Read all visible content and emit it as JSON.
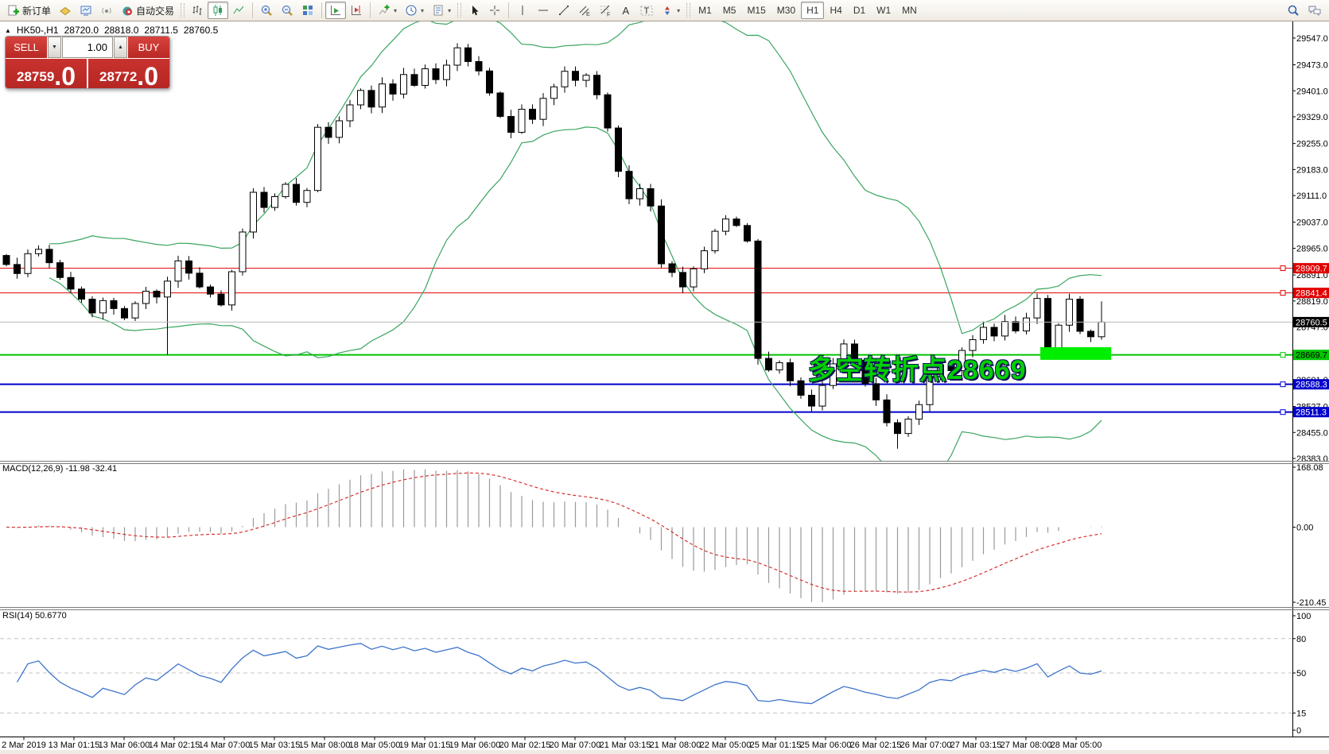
{
  "toolbar": {
    "new_order_label": "新订单",
    "autotrade_label": "自动交易",
    "timeframes": [
      "M1",
      "M5",
      "M15",
      "M30",
      "H1",
      "H4",
      "D1",
      "W1",
      "MN"
    ],
    "active_timeframe": "H1"
  },
  "chart_header": {
    "symbol_period": "HK50-,H1",
    "open": "28720.0",
    "high": "28818.0",
    "low": "28711.5",
    "close": "28760.5"
  },
  "trade_panel": {
    "sell_label": "SELL",
    "buy_label": "BUY",
    "volume": "1.00",
    "sell_price_int": "28759",
    "sell_price_frac": ".0",
    "buy_price_int": "28772",
    "buy_price_frac": ".0"
  },
  "annotation": "多空转折点28669",
  "macd_label": "MACD(12,26,9) -11.98 -32.41",
  "rsi_label": "RSI(14) 50.6770",
  "chart_data": {
    "type": "candlestick",
    "symbol": "HK50-",
    "period": "H1",
    "current_price": {
      "value": 28760.5,
      "label": "28760.5"
    },
    "price_ticks": [
      "29547.0",
      "29473.0",
      "29401.0",
      "29329.0",
      "29255.0",
      "29183.0",
      "29111.0",
      "29037.0",
      "28965.0",
      "28891.0",
      "28819.0",
      "28747.0",
      "28675.0",
      "28601.0",
      "28527.0",
      "28455.0",
      "28383.0"
    ],
    "time_labels": [
      "2 Mar 2019",
      "13 Mar 01:15",
      "13 Mar 06:00",
      "14 Mar 02:15",
      "14 Mar 07:00",
      "15 Mar 03:15",
      "15 Mar 08:00",
      "18 Mar 05:00",
      "19 Mar 01:15",
      "19 Mar 06:00",
      "20 Mar 02:15",
      "20 Mar 07:00",
      "21 Mar 03:15",
      "21 Mar 08:00",
      "22 Mar 05:00",
      "25 Mar 01:15",
      "25 Mar 06:00",
      "26 Mar 02:15",
      "26 Mar 07:00",
      "27 Mar 03:15",
      "27 Mar 08:00",
      "28 Mar 05:00"
    ],
    "first_open": 28945,
    "closes": [
      28920,
      28895,
      28950,
      28962,
      28925,
      28884,
      28852,
      28824,
      28786,
      28820,
      28798,
      28772,
      28812,
      28846,
      28830,
      28874,
      28930,
      28896,
      28858,
      28838,
      28808,
      28900,
      29010,
      29120,
      29078,
      29108,
      29142,
      29092,
      29125,
      29300,
      29272,
      29318,
      29362,
      29402,
      29356,
      29420,
      29392,
      29446,
      29416,
      29462,
      29432,
      29472,
      29520,
      29482,
      29456,
      29395,
      29330,
      29286,
      29350,
      29322,
      29380,
      29412,
      29455,
      29430,
      29444,
      29390,
      29298,
      29178,
      29102,
      29130,
      29082,
      28922,
      28898,
      28858,
      28908,
      28958,
      29012,
      29046,
      29028,
      28985,
      28660,
      28628,
      28648,
      28598,
      28558,
      28528,
      28585,
      28645,
      28700,
      28655,
      28590,
      28545,
      28482,
      28452,
      28492,
      28532,
      28610,
      28642,
      28626,
      28682,
      28712,
      28746,
      28722,
      28762,
      28736,
      28772,
      28826,
      28680,
      28752,
      28824,
      28735,
      28720,
      28760.5
    ],
    "wick_overrides": {
      "15": {
        "low": 28670
      },
      "83": {
        "low": 28410
      },
      "102": {
        "high": 28818,
        "low": 28711.5
      }
    },
    "hlines": [
      {
        "label": "28909.7",
        "value": 28909.7,
        "color": "#e00000",
        "width": 1,
        "text": "#ffffff"
      },
      {
        "label": "28841.4",
        "value": 28841.4,
        "color": "#e00000",
        "width": 1,
        "text": "#ffffff"
      },
      {
        "label": "28669.7",
        "value": 28669.7,
        "color": "#00c400",
        "width": 2,
        "text": "#000000"
      },
      {
        "label": "28588.3",
        "value": 28588.3,
        "color": "#0000cc",
        "width": 2,
        "text": "#ffffff"
      },
      {
        "label": "28511.3",
        "value": 28511.3,
        "color": "#0000cc",
        "width": 2,
        "text": "#ffffff"
      }
    ],
    "bollinger": {
      "period": 20,
      "deviation": 2,
      "color": "#3aa560"
    },
    "rectangle": {
      "bar_from": 96.3,
      "bar_to": 102.9,
      "price_top": 28691,
      "price_bottom": 28656,
      "color": "#00ee00"
    },
    "macd": {
      "params": [
        12,
        26,
        9
      ],
      "value": -11.98,
      "signal": -32.41,
      "scale_labels": [
        "168.08",
        "0.00",
        "-210.45"
      ],
      "histogram_color": "#9a9a9a",
      "signal_color": "#d83030"
    },
    "rsi": {
      "period": 14,
      "value": 50.677,
      "levels": [
        100,
        80,
        50,
        15,
        0
      ],
      "line_color": "#3d74cc"
    }
  }
}
